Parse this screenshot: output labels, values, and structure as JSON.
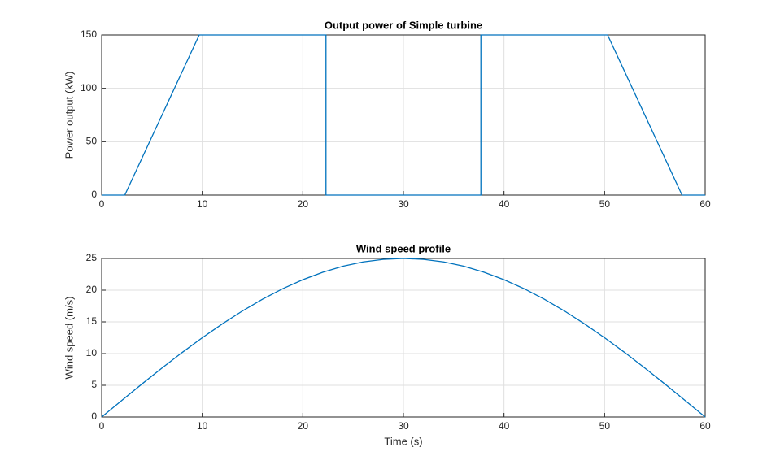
{
  "chart_data": [
    {
      "type": "line",
      "title": "Output power of Simple turbine",
      "ylabel": "Power output (kW)",
      "x": [
        0,
        2.3,
        9.7,
        22.3,
        22.3,
        37.7,
        37.7,
        50.3,
        57.7,
        60
      ],
      "values": [
        0,
        0,
        150,
        150,
        0,
        0,
        150,
        150,
        0,
        0
      ],
      "color": "#0072bd",
      "xlim": [
        0,
        60
      ],
      "xticks": [
        0,
        10,
        20,
        30,
        40,
        50,
        60
      ],
      "ylim": [
        0,
        150
      ],
      "yticks": [
        0,
        50,
        100,
        150
      ],
      "grid": true
    },
    {
      "type": "line",
      "title": "Wind speed profile",
      "xlabel": "Time (s)",
      "ylabel": "Wind speed (m/s)",
      "x": [
        0,
        2,
        4,
        6,
        8,
        10,
        12,
        14,
        16,
        18,
        20,
        22,
        24,
        26,
        28,
        30,
        32,
        34,
        36,
        38,
        40,
        42,
        44,
        46,
        48,
        50,
        52,
        54,
        56,
        58,
        60
      ],
      "values": [
        0,
        2.61,
        5.2,
        7.73,
        10.17,
        12.5,
        14.69,
        16.73,
        18.58,
        20.23,
        21.65,
        22.84,
        23.78,
        24.45,
        24.86,
        25,
        24.86,
        24.45,
        23.78,
        22.84,
        21.65,
        20.23,
        18.58,
        16.73,
        14.69,
        12.5,
        10.17,
        7.73,
        5.2,
        2.61,
        0
      ],
      "color": "#0072bd",
      "xlim": [
        0,
        60
      ],
      "xticks": [
        0,
        10,
        20,
        30,
        40,
        50,
        60
      ],
      "ylim": [
        0,
        25
      ],
      "yticks": [
        0,
        5,
        10,
        15,
        20,
        25
      ],
      "grid": true
    }
  ]
}
